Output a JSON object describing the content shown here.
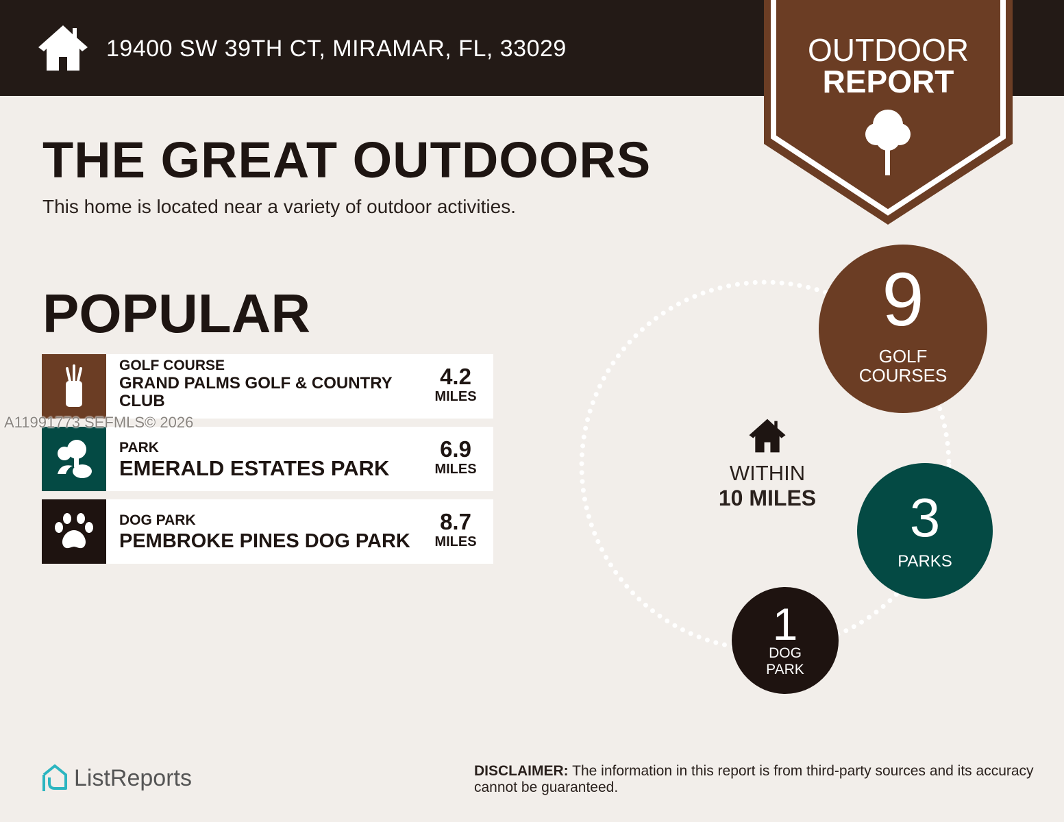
{
  "header": {
    "address": "19400 SW 39TH CT, MIRAMAR, FL, 33029",
    "badge_line1": "OUTDOOR",
    "badge_line2": "REPORT"
  },
  "main": {
    "title": "THE GREAT OUTDOORS",
    "subtitle": "This home is located near a variety of outdoor activities.",
    "section": "POPULAR",
    "items": [
      {
        "category": "GOLF COURSE",
        "name": "GRAND PALMS GOLF & COUNTRY CLUB",
        "distance": "4.2",
        "unit": "MILES",
        "icon": "golf-bag-icon",
        "color": "#6b3d24"
      },
      {
        "category": "PARK",
        "name": "EMERALD ESTATES PARK",
        "distance": "6.9",
        "unit": "MILES",
        "icon": "trees-icon",
        "color": "#044a44"
      },
      {
        "category": "DOG PARK",
        "name": "PEMBROKE PINES DOG PARK",
        "distance": "8.7",
        "unit": "MILES",
        "icon": "paw-icon",
        "color": "#1e1310"
      }
    ]
  },
  "radius": {
    "line1": "WITHIN",
    "line2": "10 MILES",
    "counts": [
      {
        "value": "9",
        "label1": "GOLF",
        "label2": "COURSES",
        "color": "#6b3d24"
      },
      {
        "value": "3",
        "label1": "PARKS",
        "color": "#044a44"
      },
      {
        "value": "1",
        "label1": "DOG",
        "label2": "PARK",
        "color": "#1e1310"
      }
    ]
  },
  "watermark": "A11991773  SEFMLS© 2026",
  "footer": {
    "logo": "ListReports",
    "disclaimer_bold": "DISCLAIMER:",
    "disclaimer": " The information in this report is from third-party sources and its accuracy cannot be guaranteed."
  }
}
